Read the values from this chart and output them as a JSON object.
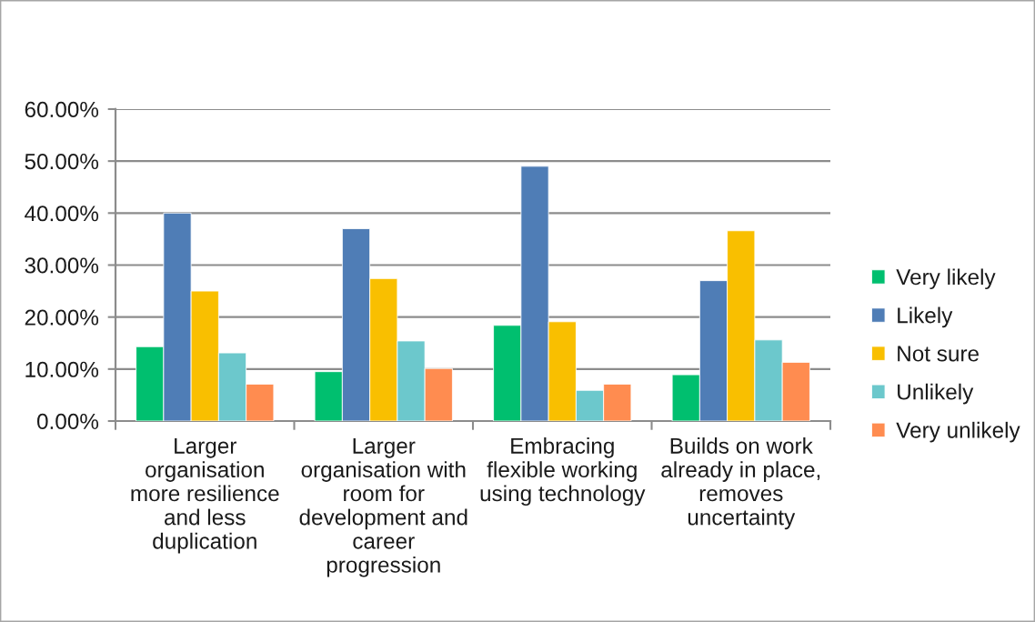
{
  "chart_data": {
    "type": "bar",
    "categories": [
      "Larger\norganisation\nmore resilience\nand less\nduplication",
      "Larger\norganisation with\nroom for\ndevelopment and\ncareer\nprogression",
      "Embracing\nflexible working\nusing technology",
      "Builds on work\nalready in place,\nremoves\nuncertainty"
    ],
    "series": [
      {
        "name": "Very likely",
        "color": "#00bf6f",
        "values": [
          14.3,
          9.5,
          18.4,
          8.9
        ]
      },
      {
        "name": "Likely",
        "color": "#4f7db6",
        "values": [
          40.0,
          37.0,
          49.0,
          27.0
        ]
      },
      {
        "name": "Not sure",
        "color": "#f9bf00",
        "values": [
          25.0,
          27.4,
          19.1,
          36.6
        ]
      },
      {
        "name": "Unlikely",
        "color": "#6cc8cc",
        "values": [
          13.1,
          15.4,
          5.9,
          15.6
        ]
      },
      {
        "name": "Very unlikely",
        "color": "#ff8c50",
        "values": [
          7.1,
          10.1,
          7.1,
          11.3
        ]
      }
    ],
    "ylim": [
      0,
      60
    ],
    "yticks": [
      {
        "value": 0,
        "label": "0.00%"
      },
      {
        "value": 10,
        "label": "10.00%"
      },
      {
        "value": 20,
        "label": "20.00%"
      },
      {
        "value": 30,
        "label": "30.00%"
      },
      {
        "value": 40,
        "label": "40.00%"
      },
      {
        "value": 50,
        "label": "50.00%"
      },
      {
        "value": 60,
        "label": "60.00%"
      }
    ],
    "grid": "y",
    "legend": "right"
  }
}
